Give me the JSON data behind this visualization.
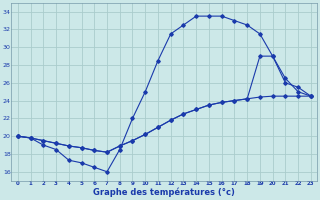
{
  "title": "Graphe des températures (°c)",
  "bg_color": "#cce8e8",
  "grid_color": "#aacccc",
  "line_color": "#1a3aab",
  "xlim": [
    -0.5,
    23.5
  ],
  "ylim": [
    15.0,
    35.0
  ],
  "yticks": [
    16,
    18,
    20,
    22,
    24,
    26,
    28,
    30,
    32,
    34
  ],
  "xticks": [
    0,
    1,
    2,
    3,
    4,
    5,
    6,
    7,
    8,
    9,
    10,
    11,
    12,
    13,
    14,
    15,
    16,
    17,
    18,
    19,
    20,
    21,
    22,
    23
  ],
  "line1_x": [
    0,
    1,
    2,
    3,
    4,
    5,
    6,
    7,
    8,
    9,
    10,
    11,
    12,
    13,
    14,
    15,
    16,
    17,
    18,
    19,
    20,
    21,
    22,
    23
  ],
  "line1_y": [
    20.0,
    19.8,
    19.5,
    19.2,
    18.9,
    18.7,
    18.4,
    18.2,
    18.9,
    19.5,
    20.2,
    21.0,
    21.8,
    22.5,
    23.0,
    23.5,
    23.8,
    24.0,
    24.2,
    24.4,
    24.5,
    24.5,
    24.5,
    24.5
  ],
  "line2_x": [
    0,
    1,
    2,
    3,
    4,
    5,
    6,
    7,
    8,
    9,
    10,
    11,
    12,
    13,
    14,
    15,
    16,
    17,
    18,
    19,
    20,
    21,
    22,
    23
  ],
  "line2_y": [
    20.0,
    19.8,
    19.0,
    18.5,
    17.3,
    17.0,
    16.5,
    16.0,
    18.5,
    22.0,
    25.0,
    28.5,
    31.5,
    32.5,
    33.5,
    33.5,
    33.5,
    33.0,
    32.5,
    31.5,
    29.0,
    26.5,
    25.0,
    24.5
  ],
  "line3_x": [
    0,
    1,
    2,
    3,
    4,
    5,
    6,
    7,
    8,
    9,
    10,
    11,
    12,
    13,
    14,
    15,
    16,
    17,
    18,
    19,
    20,
    21,
    22,
    23
  ],
  "line3_y": [
    20.0,
    19.8,
    19.5,
    19.2,
    18.9,
    18.7,
    18.4,
    18.2,
    18.9,
    19.5,
    20.2,
    21.0,
    21.8,
    22.5,
    23.0,
    23.5,
    23.8,
    24.0,
    24.2,
    29.0,
    29.0,
    26.0,
    25.5,
    24.5
  ]
}
